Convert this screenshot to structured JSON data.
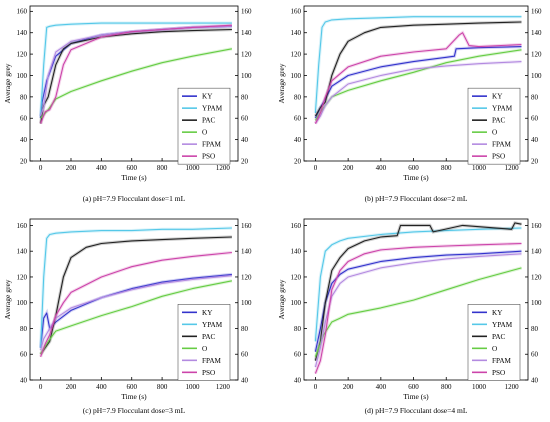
{
  "chart_data": [
    {
      "type": "line",
      "caption": "(a) pH=7.9  Flocculant dose=1 mL",
      "xlabel": "Time (s)",
      "ylabel": "Average grey",
      "xlim": [
        -70,
        1300
      ],
      "ylim": [
        20,
        165
      ],
      "xticks": [
        0,
        200,
        400,
        600,
        800,
        1000,
        1200
      ],
      "yticks": [
        20,
        40,
        60,
        80,
        100,
        120,
        140,
        160
      ],
      "right_axis_ticks": [
        20,
        40,
        60,
        80,
        100,
        120,
        140,
        160
      ],
      "legend_position": "center-right",
      "series": [
        {
          "name": "KY",
          "color": "#3333cc",
          "x": [
            0,
            10,
            40,
            100,
            200,
            400,
            600,
            800,
            1000,
            1260
          ],
          "y": [
            60,
            75,
            95,
            118,
            130,
            138,
            141,
            143,
            145,
            146
          ]
        },
        {
          "name": "YPAM",
          "color": "#55c8e8",
          "x": [
            0,
            20,
            40,
            60,
            100,
            200,
            400,
            600,
            800,
            1000,
            1260
          ],
          "y": [
            62,
            110,
            145,
            146,
            147,
            148,
            149,
            149,
            149,
            149,
            149
          ]
        },
        {
          "name": "PAC",
          "color": "#222222",
          "x": [
            0,
            20,
            50,
            100,
            150,
            200,
            400,
            600,
            800,
            1000,
            1260
          ],
          "y": [
            55,
            72,
            80,
            110,
            125,
            130,
            136,
            139,
            141,
            142,
            143
          ]
        },
        {
          "name": "O",
          "color": "#66cc44",
          "x": [
            0,
            50,
            100,
            200,
            400,
            600,
            800,
            1000,
            1260
          ],
          "y": [
            60,
            68,
            78,
            85,
            95,
            104,
            112,
            118,
            125
          ]
        },
        {
          "name": "FPAM",
          "color": "#b38ae0",
          "x": [
            0,
            20,
            50,
            100,
            200,
            400,
            600,
            800,
            1000,
            1260
          ],
          "y": [
            62,
            70,
            100,
            122,
            132,
            138,
            141,
            143,
            145,
            146
          ]
        },
        {
          "name": "PSO",
          "color": "#cc44aa",
          "x": [
            0,
            30,
            60,
            100,
            150,
            200,
            400,
            600,
            800,
            1000,
            1260
          ],
          "y": [
            55,
            66,
            68,
            80,
            110,
            124,
            136,
            141,
            143,
            145,
            147
          ]
        }
      ]
    },
    {
      "type": "line",
      "caption": "(b) pH=7.9  Flocculant dose=2 mL",
      "xlabel": "Time (s)",
      "ylabel": "Average grey",
      "xlim": [
        -70,
        1300
      ],
      "ylim": [
        20,
        165
      ],
      "xticks": [
        0,
        200,
        400,
        600,
        800,
        1000,
        1200
      ],
      "yticks": [
        20,
        40,
        60,
        80,
        100,
        120,
        140,
        160
      ],
      "right_axis_ticks": [
        20,
        40,
        60,
        80,
        100,
        120,
        140,
        160
      ],
      "legend_position": "center-right",
      "series": [
        {
          "name": "KY",
          "color": "#3333cc",
          "x": [
            0,
            30,
            60,
            100,
            200,
            400,
            600,
            800,
            850,
            860,
            1000,
            1260
          ],
          "y": [
            60,
            70,
            78,
            90,
            100,
            108,
            113,
            117,
            118,
            125,
            126,
            127
          ]
        },
        {
          "name": "YPAM",
          "color": "#55c8e8",
          "x": [
            0,
            20,
            40,
            60,
            100,
            200,
            400,
            600,
            800,
            1000,
            1260
          ],
          "y": [
            65,
            110,
            145,
            150,
            152,
            153,
            154,
            155,
            155,
            155,
            155
          ]
        },
        {
          "name": "PAC",
          "color": "#222222",
          "x": [
            0,
            30,
            60,
            100,
            150,
            200,
            300,
            400,
            600,
            800,
            1000,
            1260
          ],
          "y": [
            62,
            70,
            75,
            100,
            120,
            132,
            140,
            145,
            147,
            148,
            149,
            150
          ]
        },
        {
          "name": "O",
          "color": "#66cc44",
          "x": [
            0,
            50,
            100,
            200,
            400,
            600,
            800,
            1000,
            1260
          ],
          "y": [
            58,
            70,
            80,
            86,
            95,
            103,
            112,
            118,
            124
          ]
        },
        {
          "name": "FPAM",
          "color": "#b38ae0",
          "x": [
            0,
            30,
            60,
            100,
            200,
            400,
            600,
            800,
            1000,
            1260
          ],
          "y": [
            55,
            62,
            72,
            80,
            92,
            100,
            106,
            109,
            111,
            113
          ]
        },
        {
          "name": "PSO",
          "color": "#cc44aa",
          "x": [
            0,
            30,
            60,
            100,
            200,
            400,
            600,
            800,
            880,
            900,
            940,
            1000,
            1260
          ],
          "y": [
            55,
            65,
            80,
            95,
            108,
            118,
            122,
            125,
            138,
            140,
            128,
            127,
            129
          ]
        }
      ]
    },
    {
      "type": "line",
      "caption": "(c) pH=7.9  Flocculant dose=3 mL",
      "xlabel": "Time (s)",
      "ylabel": "Average grey",
      "xlim": [
        -70,
        1300
      ],
      "ylim": [
        40,
        165
      ],
      "xticks": [
        0,
        200,
        400,
        600,
        800,
        1000,
        1200
      ],
      "yticks": [
        40,
        60,
        80,
        100,
        120,
        140,
        160
      ],
      "right_axis_ticks": [
        40,
        60,
        80,
        100,
        120,
        140,
        160
      ],
      "legend_position": "center-right",
      "series": [
        {
          "name": "KY",
          "color": "#3333cc",
          "x": [
            0,
            20,
            40,
            60,
            100,
            200,
            400,
            600,
            800,
            1000,
            1260
          ],
          "y": [
            65,
            88,
            92,
            80,
            85,
            94,
            104,
            111,
            116,
            119,
            122
          ]
        },
        {
          "name": "YPAM",
          "color": "#55c8e8",
          "x": [
            0,
            20,
            40,
            60,
            100,
            200,
            400,
            600,
            800,
            1000,
            1260
          ],
          "y": [
            65,
            120,
            150,
            153,
            154,
            155,
            156,
            156,
            157,
            157,
            158
          ]
        },
        {
          "name": "PAC",
          "color": "#222222",
          "x": [
            0,
            30,
            60,
            100,
            150,
            200,
            300,
            400,
            600,
            800,
            1000,
            1260
          ],
          "y": [
            60,
            65,
            70,
            90,
            120,
            135,
            143,
            146,
            148,
            149,
            150,
            151
          ]
        },
        {
          "name": "O",
          "color": "#66cc44",
          "x": [
            0,
            50,
            100,
            200,
            400,
            600,
            800,
            1000,
            1260
          ],
          "y": [
            60,
            70,
            78,
            82,
            90,
            97,
            105,
            111,
            117
          ]
        },
        {
          "name": "FPAM",
          "color": "#b38ae0",
          "x": [
            0,
            20,
            50,
            100,
            200,
            400,
            600,
            800,
            1000,
            1260
          ],
          "y": [
            63,
            72,
            78,
            88,
            96,
            104,
            110,
            115,
            118,
            121
          ]
        },
        {
          "name": "PSO",
          "color": "#cc44aa",
          "x": [
            0,
            30,
            60,
            100,
            150,
            200,
            400,
            600,
            800,
            1000,
            1260
          ],
          "y": [
            58,
            68,
            75,
            90,
            100,
            108,
            120,
            128,
            133,
            136,
            139
          ]
        }
      ]
    },
    {
      "type": "line",
      "caption": "(d) pH=7.9  Flocculant dose=4 mL",
      "xlabel": "Time (s)",
      "ylabel": "Average grey",
      "xlim": [
        -70,
        1300
      ],
      "ylim": [
        40,
        165
      ],
      "xticks": [
        0,
        200,
        400,
        600,
        800,
        1000,
        1200
      ],
      "yticks": [
        40,
        60,
        80,
        100,
        120,
        140,
        160
      ],
      "right_axis_ticks": [
        40,
        60,
        80,
        100,
        120,
        140,
        160
      ],
      "legend_position": "center-right",
      "series": [
        {
          "name": "KY",
          "color": "#3333cc",
          "x": [
            0,
            30,
            60,
            100,
            150,
            200,
            400,
            600,
            800,
            1000,
            1260
          ],
          "y": [
            62,
            80,
            100,
            115,
            122,
            126,
            132,
            135,
            137,
            138,
            140
          ]
        },
        {
          "name": "YPAM",
          "color": "#55c8e8",
          "x": [
            0,
            30,
            60,
            100,
            150,
            200,
            400,
            600,
            800,
            1000,
            1260
          ],
          "y": [
            70,
            120,
            140,
            145,
            148,
            150,
            153,
            155,
            156,
            157,
            158
          ]
        },
        {
          "name": "PAC",
          "color": "#222222",
          "x": [
            0,
            30,
            60,
            100,
            150,
            200,
            300,
            400,
            500,
            520,
            700,
            720,
            900,
            1000,
            1200,
            1220,
            1260
          ],
          "y": [
            55,
            70,
            100,
            125,
            135,
            142,
            148,
            151,
            152,
            160,
            160,
            155,
            160,
            159,
            157,
            162,
            161
          ]
        },
        {
          "name": "O",
          "color": "#66cc44",
          "x": [
            0,
            50,
            100,
            150,
            200,
            400,
            600,
            800,
            1000,
            1260
          ],
          "y": [
            58,
            75,
            85,
            88,
            91,
            96,
            102,
            110,
            118,
            127
          ]
        },
        {
          "name": "FPAM",
          "color": "#b38ae0",
          "x": [
            0,
            30,
            60,
            100,
            150,
            200,
            400,
            600,
            800,
            1000,
            1260
          ],
          "y": [
            50,
            65,
            85,
            105,
            115,
            120,
            127,
            131,
            134,
            136,
            138
          ]
        },
        {
          "name": "PSO",
          "color": "#cc44aa",
          "x": [
            0,
            30,
            60,
            100,
            150,
            200,
            300,
            400,
            600,
            800,
            1000,
            1260
          ],
          "y": [
            45,
            55,
            75,
            110,
            125,
            132,
            138,
            141,
            143,
            144,
            145,
            146
          ]
        }
      ]
    }
  ]
}
